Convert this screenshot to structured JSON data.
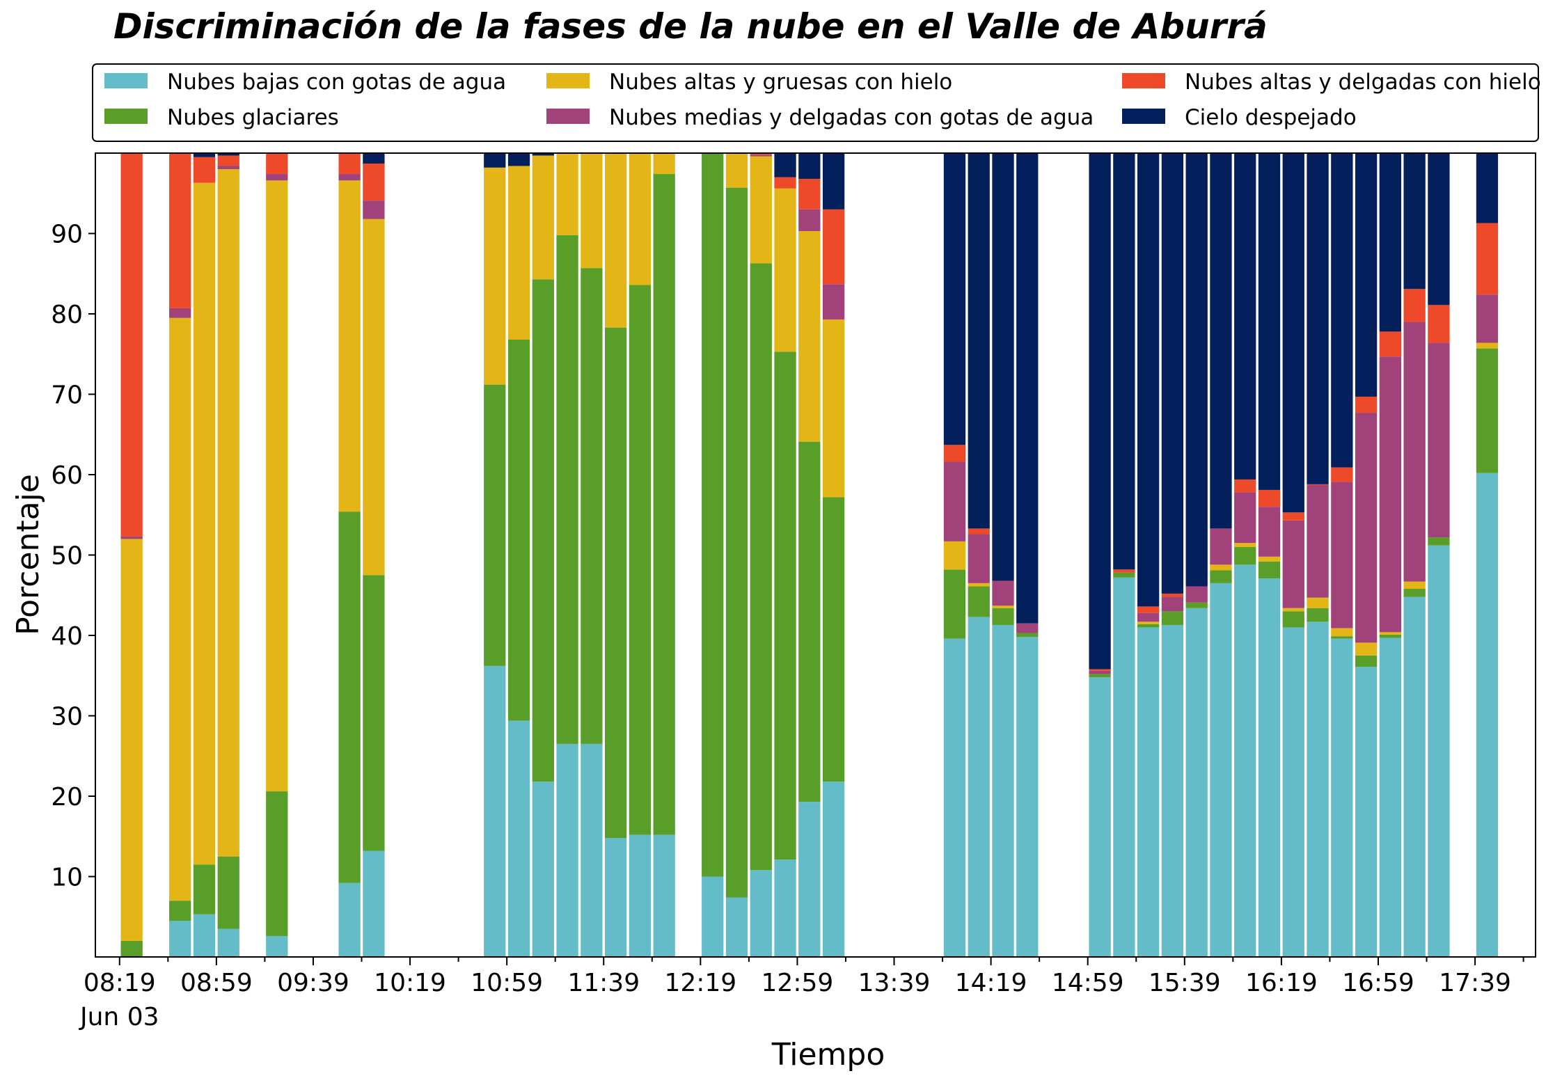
{
  "chart_data": {
    "type": "bar",
    "stacked": true,
    "title": "Discriminación de la fases de la nube en el Valle de Aburrá",
    "xlabel": "Tiempo",
    "ylabel": "Porcentaje",
    "ylim": [
      0,
      100
    ],
    "y_ticks": [
      10,
      20,
      30,
      40,
      50,
      60,
      70,
      80,
      90
    ],
    "x_range_minutes": [
      -10,
      585
    ],
    "x_ticks": [
      {
        "minute": 0,
        "label": "08:19",
        "sublabel": "Jun 03"
      },
      {
        "minute": 40,
        "label": "08:59"
      },
      {
        "minute": 80,
        "label": "09:39"
      },
      {
        "minute": 120,
        "label": "10:19"
      },
      {
        "minute": 160,
        "label": "10:59"
      },
      {
        "minute": 200,
        "label": "11:39"
      },
      {
        "minute": 240,
        "label": "12:19"
      },
      {
        "minute": 280,
        "label": "12:59"
      },
      {
        "minute": 320,
        "label": "13:39"
      },
      {
        "minute": 360,
        "label": "14:19"
      },
      {
        "minute": 400,
        "label": "14:59"
      },
      {
        "minute": 440,
        "label": "15:39"
      },
      {
        "minute": 480,
        "label": "16:19"
      },
      {
        "minute": 520,
        "label": "16:59"
      },
      {
        "minute": 560,
        "label": "17:39"
      }
    ],
    "legend_position": "top",
    "series": [
      {
        "name": "Nubes bajas con gotas de agua",
        "color": "#63BCC8"
      },
      {
        "name": "Nubes glaciares",
        "color": "#5A9E2A"
      },
      {
        "name": "Nubes altas y gruesas con hielo",
        "color": "#E3B516"
      },
      {
        "name": "Nubes medias y delgadas con gotas de agua",
        "color": "#A1437A"
      },
      {
        "name": "Nubes altas y delgadas con hielo",
        "color": "#EE4A2A"
      },
      {
        "name": "Cielo despejado",
        "color": "#04205C"
      }
    ],
    "bar_width_minutes": 9,
    "bars": [
      {
        "minute": 5,
        "values": [
          0,
          2,
          50,
          0.3,
          47.7,
          0
        ]
      },
      {
        "minute": 25,
        "values": [
          4.5,
          2.5,
          72.5,
          1.2,
          19.3,
          0
        ]
      },
      {
        "minute": 35,
        "values": [
          5.3,
          6.2,
          84.8,
          0,
          3.2,
          0.5
        ]
      },
      {
        "minute": 45,
        "values": [
          3.5,
          9,
          85.5,
          0.4,
          1.3,
          0.3
        ]
      },
      {
        "minute": 65,
        "values": [
          2.6,
          18,
          76,
          0.8,
          2.6,
          0
        ]
      },
      {
        "minute": 95,
        "values": [
          9.2,
          46.2,
          41.2,
          0.8,
          2.6,
          0
        ]
      },
      {
        "minute": 105,
        "values": [
          13.2,
          34.3,
          44.3,
          2.3,
          4.6,
          1.3
        ]
      },
      {
        "minute": 155,
        "values": [
          36.2,
          35,
          27,
          0,
          0,
          1.8
        ]
      },
      {
        "minute": 165,
        "values": [
          29.4,
          47.4,
          21.6,
          0,
          0,
          1.6
        ]
      },
      {
        "minute": 175,
        "values": [
          21.8,
          62.5,
          15.4,
          0,
          0,
          0.3
        ]
      },
      {
        "minute": 185,
        "values": [
          26.5,
          63.3,
          10.3,
          0,
          0,
          0
        ]
      },
      {
        "minute": 195,
        "values": [
          26.5,
          59.2,
          14.2,
          0,
          0.2,
          0
        ]
      },
      {
        "minute": 205,
        "values": [
          14.8,
          63.5,
          21.7,
          0,
          0,
          0
        ]
      },
      {
        "minute": 215,
        "values": [
          15.2,
          68.4,
          16.4,
          0,
          0,
          0
        ]
      },
      {
        "minute": 225,
        "values": [
          15.2,
          82.2,
          2.6,
          0,
          0,
          0
        ]
      },
      {
        "minute": 245,
        "values": [
          10,
          90,
          0,
          0,
          0,
          0
        ]
      },
      {
        "minute": 255,
        "values": [
          7.4,
          88.3,
          4.3,
          0,
          0,
          0
        ]
      },
      {
        "minute": 265,
        "values": [
          10.8,
          75.5,
          13.3,
          0.2,
          0.2,
          0
        ]
      },
      {
        "minute": 275,
        "values": [
          12.1,
          63.2,
          20.3,
          0,
          1.4,
          3
        ]
      },
      {
        "minute": 285,
        "values": [
          19.3,
          44.8,
          26.2,
          2.7,
          3.8,
          3.2
        ]
      },
      {
        "minute": 295,
        "values": [
          21.8,
          35.4,
          22.1,
          4.4,
          9.3,
          7
        ]
      },
      {
        "minute": 345,
        "values": [
          39.6,
          8.6,
          3.5,
          9.9,
          2.1,
          36.3
        ]
      },
      {
        "minute": 355,
        "values": [
          42.3,
          3.8,
          0.4,
          6.1,
          0.7,
          46.7
        ]
      },
      {
        "minute": 365,
        "values": [
          41.3,
          2.1,
          0.3,
          3.1,
          0,
          53.2
        ]
      },
      {
        "minute": 375,
        "values": [
          39.8,
          0.5,
          0,
          1.2,
          0,
          58.5
        ]
      },
      {
        "minute": 405,
        "values": [
          34.8,
          0.4,
          0,
          0.4,
          0.2,
          64.2
        ]
      },
      {
        "minute": 415,
        "values": [
          47.2,
          0.6,
          0,
          0,
          0.4,
          51.8
        ]
      },
      {
        "minute": 425,
        "values": [
          41,
          0.4,
          0.3,
          1.1,
          0.8,
          56.4
        ]
      },
      {
        "minute": 435,
        "values": [
          41.3,
          1.7,
          0,
          1.8,
          0.4,
          54.8
        ]
      },
      {
        "minute": 445,
        "values": [
          43.4,
          0.7,
          0,
          2,
          0,
          53.9
        ]
      },
      {
        "minute": 455,
        "values": [
          46.5,
          1.6,
          0.7,
          4.5,
          0,
          46.7
        ]
      },
      {
        "minute": 465,
        "values": [
          48.8,
          2.2,
          0.5,
          6.3,
          1.6,
          40.6
        ]
      },
      {
        "minute": 475,
        "values": [
          47.1,
          2.1,
          0.6,
          6.2,
          2.1,
          41.9
        ]
      },
      {
        "minute": 485,
        "values": [
          41,
          2,
          0.4,
          10.9,
          1,
          44.7
        ]
      },
      {
        "minute": 495,
        "values": [
          41.7,
          1.7,
          1.3,
          14,
          0.1,
          41.2
        ]
      },
      {
        "minute": 505,
        "values": [
          39.6,
          0.3,
          1,
          18.2,
          1.8,
          39.1
        ]
      },
      {
        "minute": 515,
        "values": [
          36.1,
          1.4,
          1.6,
          28.6,
          2,
          30.3
        ]
      },
      {
        "minute": 525,
        "values": [
          39.7,
          0.4,
          0.3,
          34.3,
          3.1,
          22.2
        ]
      },
      {
        "minute": 535,
        "values": [
          44.8,
          1,
          0.9,
          32.3,
          4.1,
          16.9
        ]
      },
      {
        "minute": 545,
        "values": [
          51.2,
          1,
          0,
          24.2,
          4.7,
          18.9
        ]
      },
      {
        "minute": 565,
        "values": [
          60.2,
          15.5,
          0.7,
          6,
          8.9,
          8.7
        ]
      }
    ]
  }
}
